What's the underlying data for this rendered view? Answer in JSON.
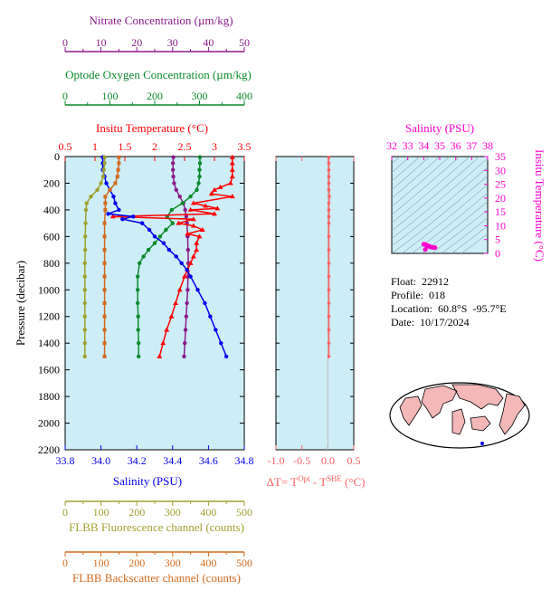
{
  "colors": {
    "nitrate": "#8b1a8b",
    "oxygen": "#0a8a2a",
    "temperature": "#ff0000",
    "salinity": "#0000ee",
    "fluorescence": "#a0a030",
    "backscatter": "#d2691e",
    "delta": "#ff6060",
    "ts": "#ff00cc",
    "panel_bg": "#cdeef7"
  },
  "info": {
    "float": "Float:  22912",
    "profile": "Profile:  018",
    "location": "Location:  60.8°S  -95.7°E",
    "date": "Date:  10/17/2024"
  },
  "chart_data": [
    {
      "type": "line",
      "panel": "profiles",
      "ylabel": "Pressure (decibar)",
      "ylim": [
        2200,
        0
      ],
      "yticks": [
        "0",
        "200",
        "400",
        "600",
        "800",
        "1000",
        "1200",
        "1400",
        "1600",
        "1800",
        "2000",
        "2200"
      ],
      "grid": false,
      "axes": {
        "nitrate": {
          "label": "Nitrate Concentration (µm/kg)",
          "range": [
            0,
            50
          ],
          "ticks": [
            "0",
            "10",
            "20",
            "30",
            "40",
            "50"
          ]
        },
        "oxygen": {
          "label": "Optode Oxygen Concentration (µm/kg)",
          "range": [
            0,
            400
          ],
          "ticks": [
            "0",
            "100",
            "200",
            "300",
            "400"
          ]
        },
        "temperature": {
          "label": "Insitu Temperature (°C)",
          "range": [
            0.5,
            3.5
          ],
          "ticks": [
            "0.5",
            "1",
            "1.5",
            "2",
            "2.5",
            "3",
            "3.5"
          ]
        },
        "salinity": {
          "label": "Salinity (PSU)",
          "range": [
            33.8,
            34.8
          ],
          "ticks": [
            "33.8",
            "34.0",
            "34.2",
            "34.4",
            "34.6",
            "34.8"
          ]
        },
        "fluorescence": {
          "label": "FLBB Fluorescence channel (counts)",
          "range": [
            0,
            500
          ],
          "ticks": [
            "0",
            "100",
            "200",
            "300",
            "400",
            "500"
          ]
        },
        "backscatter": {
          "label": "FLBB Backscatter channel (counts)",
          "range": [
            0,
            500
          ],
          "ticks": [
            "0",
            "100",
            "200",
            "300",
            "400",
            "500"
          ]
        }
      },
      "series": [
        {
          "key": "nitrate",
          "p": [
            5,
            50,
            100,
            150,
            200,
            250,
            300,
            350,
            400,
            450,
            500,
            600,
            700,
            800,
            900,
            1000,
            1100,
            1200,
            1300,
            1400,
            1500
          ],
          "values": [
            30.2,
            30.1,
            30.1,
            30.2,
            30.4,
            31,
            32,
            33,
            33.5,
            33.8,
            34,
            34.2,
            34.3,
            34.4,
            34.3,
            34.2,
            34,
            33.8,
            33.6,
            33.4,
            33.2
          ]
        },
        {
          "key": "oxygen",
          "p": [
            5,
            50,
            100,
            150,
            200,
            250,
            300,
            350,
            400,
            450,
            500,
            550,
            600,
            650,
            700,
            750,
            800,
            900,
            1000,
            1100,
            1200,
            1300,
            1400,
            1500
          ],
          "values": [
            301,
            301,
            300,
            300,
            298,
            294,
            280,
            262,
            238,
            228,
            240,
            225,
            212,
            200,
            186,
            175,
            166,
            162,
            162,
            162,
            163,
            163,
            164,
            164
          ]
        },
        {
          "key": "temperature",
          "p": [
            5,
            50,
            100,
            150,
            200,
            230,
            250,
            280,
            300,
            350,
            370,
            390,
            400,
            430,
            450,
            470,
            500,
            520,
            550,
            580,
            600,
            650,
            700,
            750,
            800,
            850,
            900,
            1000,
            1100,
            1200,
            1300,
            1400,
            1500
          ],
          "values": [
            3.3,
            3.3,
            3.3,
            3.3,
            3.27,
            3.1,
            3.0,
            2.95,
            3.3,
            2.65,
            2.85,
            3.05,
            2.6,
            3.0,
            1.3,
            2.65,
            2.4,
            2.65,
            2.8,
            2.55,
            2.75,
            2.7,
            2.7,
            2.65,
            2.6,
            2.55,
            2.5,
            2.42,
            2.35,
            2.28,
            2.2,
            2.14,
            2.08
          ]
        },
        {
          "key": "salinity",
          "p": [
            5,
            50,
            100,
            150,
            200,
            250,
            300,
            350,
            400,
            430,
            450,
            470,
            500,
            550,
            600,
            650,
            700,
            750,
            800,
            850,
            900,
            1000,
            1100,
            1200,
            1300,
            1400,
            1500
          ],
          "values": [
            34.01,
            34.01,
            34.01,
            34.02,
            34.03,
            34.05,
            34.07,
            34.08,
            34.1,
            34.04,
            34.18,
            34.12,
            34.23,
            34.27,
            34.3,
            34.35,
            34.38,
            34.42,
            34.45,
            34.48,
            34.5,
            34.54,
            34.58,
            34.61,
            34.64,
            34.67,
            34.7
          ]
        },
        {
          "key": "fluorescence",
          "p": [
            5,
            50,
            100,
            150,
            200,
            250,
            300,
            350,
            400,
            500,
            600,
            700,
            800,
            900,
            1000,
            1100,
            1200,
            1300,
            1400,
            1500
          ],
          "values": [
            110,
            110,
            108,
            106,
            100,
            90,
            72,
            60,
            58,
            57,
            56,
            56,
            55,
            55,
            55,
            55,
            55,
            55,
            55,
            55
          ]
        },
        {
          "key": "backscatter",
          "p": [
            5,
            50,
            100,
            150,
            200,
            250,
            300,
            350,
            400,
            500,
            600,
            700,
            800,
            900,
            1000,
            1100,
            1200,
            1300,
            1400,
            1500
          ],
          "values": [
            150,
            150,
            148,
            146,
            140,
            125,
            112,
            112,
            112,
            110,
            110,
            110,
            110,
            110,
            110,
            110,
            110,
            110,
            110,
            110
          ]
        }
      ]
    },
    {
      "type": "line",
      "panel": "delta",
      "xlabel_main": "ΔT= T",
      "xlabel_sup1": "Opt",
      "xlabel_mid": " - T",
      "xlabel_sup2": "SBE",
      "xlabel_unit": " (°C)",
      "xlim": [
        -1.0,
        0.5
      ],
      "xticks": [
        "-1.0",
        "-0.5",
        "0.0",
        "0.5"
      ],
      "ylim": [
        2200,
        0
      ],
      "p": [
        5,
        50,
        100,
        150,
        200,
        250,
        300,
        350,
        400,
        450,
        500,
        600,
        700,
        800,
        900,
        1000,
        1100,
        1200,
        1300,
        1400,
        1500
      ],
      "values": [
        0.02,
        0.02,
        0.02,
        0.02,
        0.02,
        0.02,
        0.03,
        0.02,
        0.02,
        0.02,
        0.02,
        0.02,
        0.02,
        0.02,
        0.02,
        0.02,
        0.02,
        0.02,
        0.02,
        0.02,
        0.02
      ]
    },
    {
      "type": "scatter",
      "panel": "ts",
      "xlabel": "Salinity (PSU)",
      "ylabel": "Insitu Temperature (°C)",
      "xlim": [
        32,
        38
      ],
      "ylim": [
        0,
        35
      ],
      "xticks": [
        "32",
        "33",
        "34",
        "35",
        "36",
        "37",
        "38"
      ],
      "yticks": [
        "0",
        "5",
        "10",
        "15",
        "20",
        "25",
        "30",
        "35"
      ],
      "x": [
        34.0,
        34.1,
        34.2,
        34.3,
        34.4,
        34.5,
        34.6,
        34.7,
        34.1,
        34.3
      ],
      "y": [
        3.3,
        3.2,
        2.9,
        2.6,
        2.4,
        2.2,
        2.1,
        2.1,
        1.4,
        2.7
      ]
    }
  ]
}
